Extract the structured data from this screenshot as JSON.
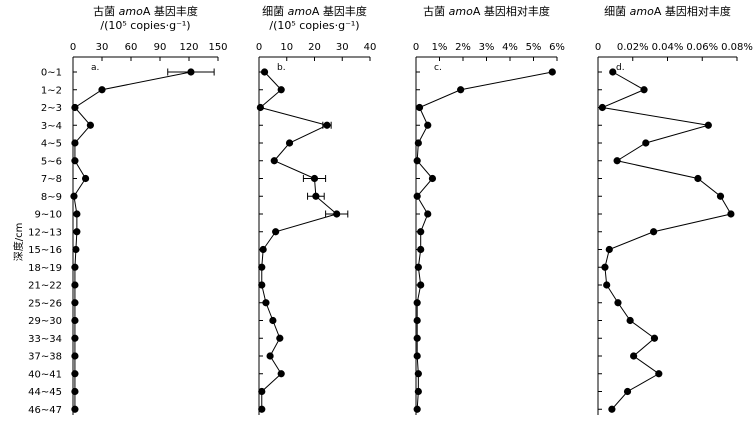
{
  "figure": {
    "y_axis_label": "深度/cm",
    "depth_labels": [
      "0~1",
      "1~2",
      "2~3",
      "3~4",
      "4~5",
      "5~6",
      "7~8",
      "8~9",
      "9~10",
      "12~13",
      "15~16",
      "18~19",
      "21~22",
      "25~26",
      "29~30",
      "33~34",
      "37~38",
      "40~41",
      "44~45",
      "46~47"
    ]
  },
  "chart_data": [
    {
      "type": "line",
      "panel_label": "a.",
      "title": "古菌 amoA 基因丰度",
      "title_parts": [
        "古菌 ",
        "amo",
        "A 基因丰度"
      ],
      "unit": "/(10⁵ copies·g⁻¹)",
      "xlim": [
        0,
        150
      ],
      "x_ticks": [
        0,
        30,
        60,
        90,
        120,
        150
      ],
      "x_tick_labels": [
        "0",
        "30",
        "60",
        "90",
        "120",
        "150"
      ],
      "categories": [
        "0~1",
        "1~2",
        "2~3",
        "3~4",
        "4~5",
        "5~6",
        "7~8",
        "8~9",
        "9~10",
        "12~13",
        "15~16",
        "18~19",
        "21~22",
        "25~26",
        "29~30",
        "33~34",
        "37~38",
        "40~41",
        "44~45",
        "46~47"
      ],
      "values": [
        122,
        30,
        2,
        18,
        2,
        2,
        13,
        1,
        4,
        4,
        3,
        2,
        2,
        2,
        2,
        2,
        2,
        2,
        2,
        2
      ],
      "error": [
        24,
        0,
        0,
        0,
        0,
        0,
        0,
        0,
        0,
        0,
        0,
        0,
        0,
        0,
        0,
        0,
        0,
        0,
        0,
        0
      ]
    },
    {
      "type": "line",
      "panel_label": "b.",
      "title": "细菌 amoA 基因丰度",
      "title_parts": [
        "细菌 ",
        "amo",
        "A 基因丰度"
      ],
      "unit": "/(10⁵ copies·g⁻¹)",
      "xlim": [
        0,
        40
      ],
      "x_ticks": [
        0,
        10,
        20,
        30,
        40
      ],
      "x_tick_labels": [
        "0",
        "10",
        "20",
        "30",
        "40"
      ],
      "categories": [
        "0~1",
        "1~2",
        "2~3",
        "3~4",
        "4~5",
        "5~6",
        "7~8",
        "8~9",
        "9~10",
        "12~13",
        "15~16",
        "18~19",
        "21~22",
        "25~26",
        "29~30",
        "33~34",
        "37~38",
        "40~41",
        "44~45",
        "46~47"
      ],
      "values": [
        2,
        8,
        0.5,
        24.5,
        11,
        5.5,
        20,
        20.5,
        28,
        6,
        1.5,
        1,
        1,
        2.5,
        5,
        7.5,
        4,
        8,
        1,
        1
      ],
      "error": [
        0,
        0,
        0,
        1.5,
        0,
        0,
        4,
        3,
        4,
        0,
        0,
        0,
        0,
        0,
        0,
        0,
        0,
        0,
        0,
        0
      ]
    },
    {
      "type": "line",
      "panel_label": "c.",
      "title": "古菌 amoA 基因相对丰度",
      "title_parts": [
        "古菌 ",
        "amo",
        "A 基因相对丰度"
      ],
      "unit": "",
      "xlim": [
        0,
        6
      ],
      "x_ticks": [
        0,
        1,
        2,
        3,
        4,
        5,
        6
      ],
      "x_tick_labels": [
        "0",
        "1%",
        "2%",
        "3%",
        "4%",
        "5%",
        "6%"
      ],
      "categories": [
        "0~1",
        "1~2",
        "2~3",
        "3~4",
        "4~5",
        "5~6",
        "7~8",
        "8~9",
        "9~10",
        "12~13",
        "15~16",
        "18~19",
        "21~22",
        "25~26",
        "29~30",
        "33~34",
        "37~38",
        "40~41",
        "44~45",
        "46~47"
      ],
      "values": [
        5.8,
        1.9,
        0.15,
        0.5,
        0.1,
        0.05,
        0.7,
        0.05,
        0.5,
        0.2,
        0.2,
        0.1,
        0.2,
        0.05,
        0.05,
        0.05,
        0.05,
        0.1,
        0.1,
        0.05
      ],
      "error": [
        0,
        0,
        0,
        0,
        0,
        0,
        0,
        0,
        0,
        0,
        0,
        0,
        0,
        0,
        0,
        0,
        0,
        0,
        0,
        0
      ]
    },
    {
      "type": "line",
      "panel_label": "d.",
      "title": "细菌 amoA 基因相对丰度",
      "title_parts": [
        "细菌 ",
        "amo",
        "A 基因相对丰度"
      ],
      "unit": "",
      "xlim": [
        0,
        0.08
      ],
      "x_ticks": [
        0,
        0.02,
        0.04,
        0.06,
        0.08
      ],
      "x_tick_labels": [
        "0",
        "0.02%",
        "0.04%",
        "0.06%",
        "0.08%"
      ],
      "categories": [
        "0~1",
        "1~2",
        "2~3",
        "3~4",
        "4~5",
        "5~6",
        "7~8",
        "8~9",
        "9~10",
        "12~13",
        "15~16",
        "18~19",
        "21~22",
        "25~26",
        "29~30",
        "33~34",
        "37~38",
        "40~41",
        "44~45",
        "46~47"
      ],
      "values": [
        0.0085,
        0.0265,
        0.0025,
        0.0635,
        0.0275,
        0.011,
        0.0575,
        0.0705,
        0.0765,
        0.032,
        0.0065,
        0.004,
        0.005,
        0.0115,
        0.0185,
        0.0325,
        0.0205,
        0.035,
        0.017,
        0.008
      ],
      "error": [
        0,
        0,
        0,
        0,
        0,
        0,
        0,
        0,
        0,
        0,
        0,
        0,
        0,
        0,
        0,
        0,
        0,
        0,
        0,
        0
      ]
    }
  ]
}
